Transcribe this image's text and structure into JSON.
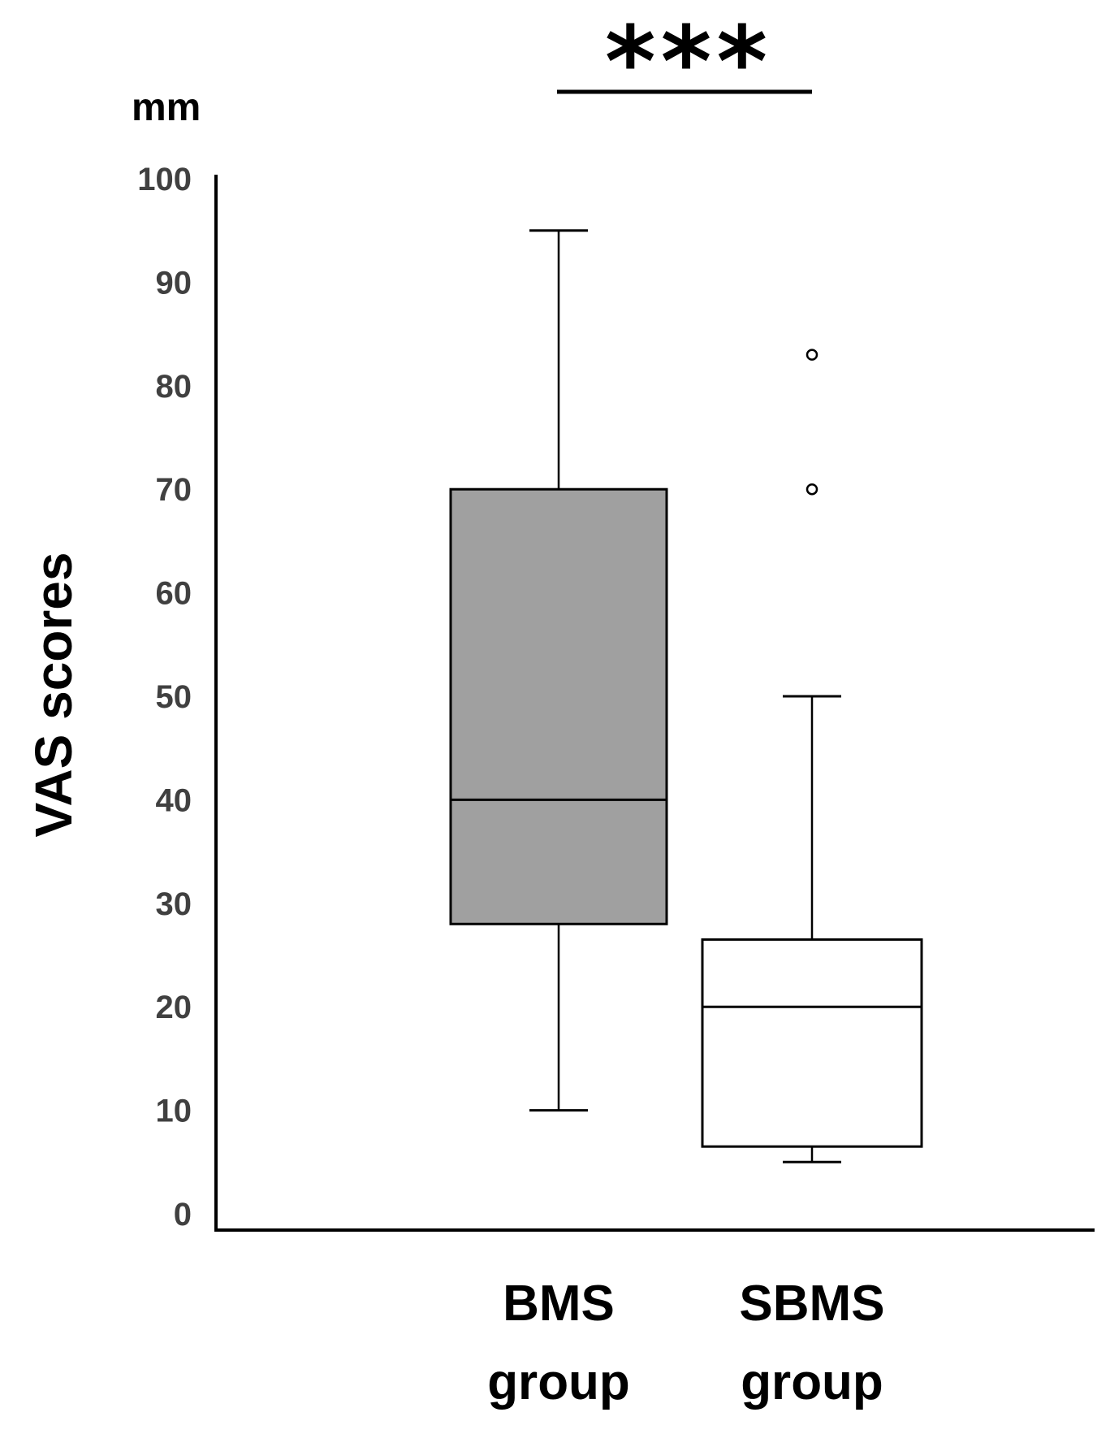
{
  "chart_data": {
    "type": "box",
    "unit": "mm",
    "ylabel": "VAS scores",
    "ylim": [
      0,
      100
    ],
    "yticks": [
      "0",
      "10",
      "20",
      "30",
      "40",
      "50",
      "60",
      "70",
      "80",
      "90",
      "100"
    ],
    "categories": [
      {
        "line1": "BMS",
        "line2": "group"
      },
      {
        "line1": "SBMS",
        "line2": "group"
      }
    ],
    "boxes": [
      {
        "min": 10,
        "q1": 28,
        "median": 40,
        "q3": 70,
        "max": 95,
        "outliers": [],
        "fill": "#a0a0a0"
      },
      {
        "min": 5,
        "q1": 6.5,
        "median": 20,
        "q3": 26.5,
        "max": 50,
        "outliers": [
          70,
          83
        ],
        "fill": "#ffffff"
      }
    ],
    "significance": {
      "label": "***",
      "from": 0,
      "to": 1
    }
  }
}
